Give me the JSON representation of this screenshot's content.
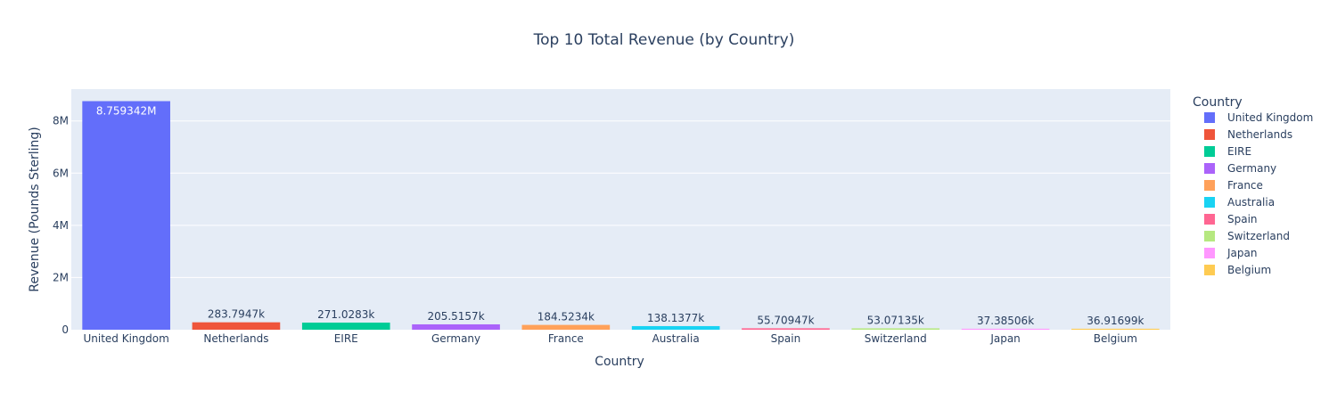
{
  "chart_data": {
    "type": "bar",
    "title": "Top 10 Total Revenue (by Country)",
    "xlabel": "Country",
    "ylabel": "Revenue (Pounds Sterling)",
    "ylim": [
      0,
      9220360
    ],
    "yticks": [
      0,
      2000000,
      4000000,
      6000000,
      8000000
    ],
    "ytick_labels": [
      "0",
      "2M",
      "4M",
      "6M",
      "8M"
    ],
    "grid": true,
    "legend_title": "Country",
    "legend_position": "right",
    "categories": [
      "United Kingdom",
      "Netherlands",
      "EIRE",
      "Germany",
      "France",
      "Australia",
      "Spain",
      "Switzerland",
      "Japan",
      "Belgium"
    ],
    "values": [
      8759342,
      283794.7,
      271028.3,
      205515.7,
      184523.4,
      138137.7,
      55709.47,
      53071.35,
      37385.06,
      36916.99
    ],
    "value_labels": [
      "8.759342M",
      "283.7947k",
      "271.0283k",
      "205.5157k",
      "184.5234k",
      "138.1377k",
      "55.70947k",
      "53.07135k",
      "37.38506k",
      "36.91699k"
    ],
    "colors": [
      "#636efa",
      "#EF553B",
      "#00cc96",
      "#ab63fa",
      "#FFA15A",
      "#19d3f3",
      "#FF6692",
      "#B6E880",
      "#FF97FF",
      "#FECB52"
    ],
    "plot_background": "#E5ECF6"
  }
}
